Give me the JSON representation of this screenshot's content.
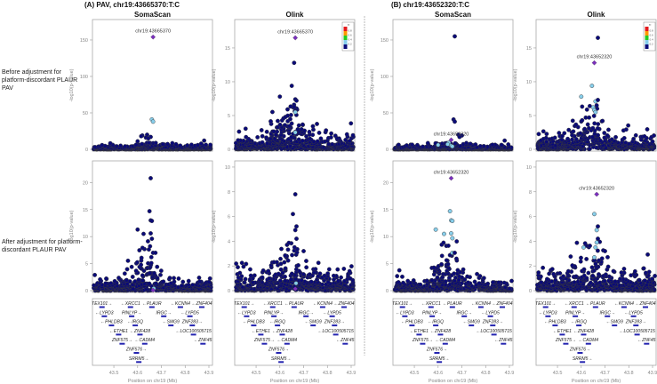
{
  "figure": {
    "title_a": "(A) PAV, chr19:43665370:T:C",
    "title_b": "(B) chr19:43652320:T:C",
    "col_titles": [
      "SomaScan",
      "Olink",
      "SomaScan",
      "Olink"
    ],
    "row_labels": [
      "Before adjustment for platform-discordant PLAUR PAV",
      "After adjustment for platform-discordant PLAUR PAV"
    ]
  },
  "colors": {
    "lead": "#7b2fbe",
    "r2_0.8": "#e41a1c",
    "r2_0.6": "#ff9900",
    "r2_0.4": "#22cc22",
    "r2_0.2": "#87ceeb",
    "r2_0": "#0a0a78"
  },
  "chart_data": {
    "type": "scatter",
    "xlabel": "Position on chr19 (Mb)",
    "ylabel": "-log10(p-value)",
    "xlim": [
      43.41,
      43.915
    ],
    "xticks": [
      43.5,
      43.6,
      43.7,
      43.8,
      43.9
    ],
    "xtick_labels": [
      "43.5",
      "43.6",
      "43.7",
      "43.8",
      "43.9"
    ],
    "legend": {
      "title": "r²",
      "labels": [
        "0.8",
        "0.6",
        "0.4",
        "0.2"
      ],
      "placement": "top-right"
    },
    "panels": [
      {
        "col": 0,
        "row": 0,
        "platform": "SomaScan",
        "ylim": [
          0,
          178
        ],
        "yticks": [
          0,
          50,
          100,
          150
        ],
        "legend": false,
        "lead": {
          "label": "chr19:43665370",
          "x": 43.665,
          "y": 154
        },
        "points": [
          [
            43.66,
            41,
            "r2_0.2"
          ],
          [
            43.665,
            38,
            "r2_0.2"
          ],
          [
            43.62,
            19,
            "r2_0"
          ],
          [
            43.64,
            20,
            "r2_0"
          ],
          [
            43.655,
            17,
            "r2_0"
          ],
          [
            43.635,
            16,
            "r2_0"
          ],
          [
            43.645,
            15,
            "r2_0"
          ],
          [
            43.615,
            18,
            "r2_0"
          ],
          [
            43.88,
            12,
            "r2_0"
          ],
          [
            43.6,
            11,
            "r2_0"
          ]
        ],
        "background": {
          "n": 520,
          "base": 1.6,
          "hump": 1.5,
          "max": 9
        }
      },
      {
        "col": 1,
        "row": 0,
        "platform": "Olink",
        "ylim": [
          0,
          19.2
        ],
        "yticks": [
          0,
          5,
          10,
          15
        ],
        "legend": true,
        "lead": {
          "label": "chr19:43665370",
          "x": 43.665,
          "y": 16.5
        },
        "points": [
          [
            43.66,
            12.8,
            "r2_0"
          ],
          [
            43.65,
            9.4,
            "r2_0"
          ],
          [
            43.6,
            7.8,
            "r2_0"
          ],
          [
            43.665,
            7.4,
            "r2_0"
          ],
          [
            43.67,
            7.2,
            "r2_0"
          ],
          [
            43.66,
            6.3,
            "r2_0"
          ],
          [
            43.665,
            5.5,
            "r2_0.2"
          ],
          [
            43.665,
            2.5,
            "r2_0.2"
          ]
        ],
        "background": {
          "n": 520,
          "base": 0.6,
          "hump": 1.6,
          "max": 6.6
        }
      },
      {
        "col": 0,
        "row": 1,
        "platform": "SomaScan",
        "ylim": [
          0,
          24
        ],
        "yticks": [
          0,
          5,
          10,
          15,
          20
        ],
        "legend": false,
        "lead": {
          "label": "",
          "x": 43.665,
          "y": 0.1
        },
        "points": [
          [
            43.655,
            20.8,
            "r2_0"
          ],
          [
            43.65,
            14.7,
            "r2_0"
          ],
          [
            43.655,
            13,
            "r2_0"
          ],
          [
            43.66,
            12.9,
            "r2_0"
          ],
          [
            43.6,
            11.3,
            "r2_0"
          ],
          [
            43.625,
            10.5,
            "r2_0"
          ],
          [
            43.655,
            10.6,
            "r2_0"
          ],
          [
            43.66,
            9.6,
            "r2_0"
          ],
          [
            43.665,
            7,
            "r2_0"
          ],
          [
            43.675,
            7,
            "r2_0"
          ],
          [
            43.668,
            0.4,
            "r2_0.2"
          ]
        ],
        "background": {
          "n": 520,
          "base": 0.55,
          "hump": 2.2,
          "max": 10
        }
      },
      {
        "col": 1,
        "row": 1,
        "platform": "Olink",
        "ylim": [
          0,
          10.5
        ],
        "yticks": [
          0,
          2,
          4,
          6,
          8,
          10
        ],
        "legend": false,
        "lead": {
          "label": "",
          "x": 43.665,
          "y": 0.15
        },
        "points": [
          [
            43.665,
            7.8,
            "r2_0"
          ],
          [
            43.655,
            6.2,
            "r2_0"
          ],
          [
            43.67,
            5.2,
            "r2_0"
          ],
          [
            43.665,
            4.9,
            "r2_0"
          ],
          [
            43.67,
            4.2,
            "r2_0"
          ],
          [
            43.7,
            3.2,
            "r2_0"
          ],
          [
            43.668,
            0.6,
            "r2_0.2"
          ]
        ],
        "background": {
          "n": 520,
          "base": 0.45,
          "hump": 1.0,
          "max": 4
        }
      },
      {
        "col": 2,
        "row": 0,
        "platform": "SomaScan",
        "ylim": [
          0,
          178
        ],
        "yticks": [
          0,
          50,
          100,
          150
        ],
        "legend": false,
        "lead": {
          "label": "chr19:43652320",
          "x": 43.655,
          "y": 13
        },
        "points": [
          [
            43.67,
            155,
            "r2_0"
          ],
          [
            43.665,
            41,
            "r2_0"
          ],
          [
            43.67,
            38,
            "r2_0"
          ],
          [
            43.685,
            20,
            "r2_0"
          ],
          [
            43.7,
            19,
            "r2_0"
          ],
          [
            43.69,
            17,
            "r2_0"
          ],
          [
            43.88,
            12,
            "r2_0"
          ],
          [
            43.645,
            9,
            "r2_0.2"
          ],
          [
            43.64,
            7,
            "r2_0.2"
          ],
          [
            43.655,
            5,
            "r2_0.2"
          ],
          [
            43.6,
            6,
            "r2_0.2"
          ],
          [
            43.66,
            4,
            "r2_0.2"
          ]
        ],
        "background": {
          "n": 520,
          "base": 1.6,
          "hump": 1.5,
          "max": 9
        }
      },
      {
        "col": 3,
        "row": 0,
        "platform": "Olink",
        "ylim": [
          0,
          19.2
        ],
        "yticks": [
          0,
          5,
          10,
          15
        ],
        "legend": true,
        "lead": {
          "label": "chr19:43652320",
          "x": 43.655,
          "y": 12.8
        },
        "points": [
          [
            43.67,
            16.5,
            "r2_0"
          ],
          [
            43.645,
            9.4,
            "r2_0.2"
          ],
          [
            43.6,
            7.8,
            "r2_0.2"
          ],
          [
            43.66,
            7.1,
            "r2_0.2"
          ],
          [
            43.67,
            7.3,
            "r2_0"
          ],
          [
            43.65,
            6.2,
            "r2_0.2"
          ],
          [
            43.655,
            5.8,
            "r2_0.2"
          ],
          [
            43.66,
            5.5,
            "r2_0.2"
          ],
          [
            43.665,
            6.5,
            "r2_0"
          ]
        ],
        "background": {
          "n": 520,
          "base": 0.6,
          "hump": 1.6,
          "max": 6.6
        }
      },
      {
        "col": 2,
        "row": 1,
        "platform": "SomaScan",
        "ylim": [
          0,
          24
        ],
        "yticks": [
          0,
          5,
          10,
          15,
          20
        ],
        "legend": false,
        "lead": {
          "label": "chr19:43652320",
          "x": 43.655,
          "y": 20.8
        },
        "points": [
          [
            43.65,
            14.7,
            "r2_0.2"
          ],
          [
            43.655,
            13,
            "r2_0.2"
          ],
          [
            43.66,
            12.9,
            "r2_0.2"
          ],
          [
            43.59,
            11.3,
            "r2_0.2"
          ],
          [
            43.625,
            10.5,
            "r2_0.2"
          ],
          [
            43.655,
            10.6,
            "r2_0.2"
          ],
          [
            43.66,
            9.7,
            "r2_0.2"
          ],
          [
            43.66,
            7,
            "r2_0.2"
          ],
          [
            43.67,
            7,
            "r2_0"
          ]
        ],
        "background": {
          "n": 520,
          "base": 0.55,
          "hump": 2.0,
          "max": 9.2
        }
      },
      {
        "col": 3,
        "row": 1,
        "platform": "Olink",
        "ylim": [
          0,
          10.5
        ],
        "yticks": [
          0,
          2,
          4,
          6,
          8,
          10
        ],
        "legend": false,
        "lead": {
          "label": "chr19:43652320",
          "x": 43.665,
          "y": 7.8
        },
        "points": [
          [
            43.655,
            6.2,
            "r2_0.2"
          ],
          [
            43.665,
            4.9,
            "r2_0.2"
          ],
          [
            43.67,
            5.2,
            "r2_0"
          ],
          [
            43.67,
            4.2,
            "r2_0"
          ],
          [
            43.665,
            3.9,
            "r2_0.2"
          ],
          [
            43.61,
            3.5,
            "r2_0.2"
          ],
          [
            43.66,
            3.5,
            "r2_0.2"
          ],
          [
            43.655,
            2.7,
            "r2_0.2"
          ],
          [
            43.7,
            3.2,
            "r2_0"
          ]
        ],
        "background": {
          "n": 520,
          "base": 0.45,
          "hump": 1.0,
          "max": 4
        }
      }
    ],
    "genes": [
      {
        "name": "TEX101",
        "x": 43.45,
        "row": 0,
        "dir": "+"
      },
      {
        "name": "XRCC1",
        "x": 43.57,
        "row": 0,
        "dir": "-"
      },
      {
        "name": "PLAUR",
        "x": 43.66,
        "row": 0,
        "dir": "-"
      },
      {
        "name": "KCNN4",
        "x": 43.78,
        "row": 0,
        "dir": "-"
      },
      {
        "name": "ZNF404",
        "x": 43.87,
        "row": 0,
        "dir": "-"
      },
      {
        "name": "LYPD3",
        "x": 43.46,
        "row": 1,
        "dir": "-"
      },
      {
        "name": "PINLYP",
        "x": 43.575,
        "row": 1,
        "dir": "+"
      },
      {
        "name": "IRGC",
        "x": 43.71,
        "row": 1,
        "dir": "+"
      },
      {
        "name": "LYPD5",
        "x": 43.82,
        "row": 1,
        "dir": "-"
      },
      {
        "name": "PHLDB3",
        "x": 43.49,
        "row": 2,
        "dir": "-"
      },
      {
        "name": "IRGQ",
        "x": 43.59,
        "row": 2,
        "dir": "-"
      },
      {
        "name": "SMG9",
        "x": 43.74,
        "row": 2,
        "dir": "-"
      },
      {
        "name": "ZNF283",
        "x": 43.83,
        "row": 2,
        "dir": "+"
      },
      {
        "name": "ETHE1",
        "x": 43.52,
        "row": 3,
        "dir": "-"
      },
      {
        "name": "ZNF428",
        "x": 43.61,
        "row": 3,
        "dir": "-"
      },
      {
        "name": "LOC100505715",
        "x": 43.835,
        "row": 3,
        "dir": "-"
      },
      {
        "name": "ZNF575",
        "x": 43.535,
        "row": 4,
        "dir": "+"
      },
      {
        "name": "CADM4",
        "x": 43.63,
        "row": 4,
        "dir": "-"
      },
      {
        "name": "ZNF45",
        "x": 43.875,
        "row": 4,
        "dir": "-"
      },
      {
        "name": "ZNF576",
        "x": 43.595,
        "row": 5,
        "dir": "+"
      },
      {
        "name": "SRRM5",
        "x": 43.605,
        "row": 6,
        "dir": "+"
      }
    ]
  }
}
